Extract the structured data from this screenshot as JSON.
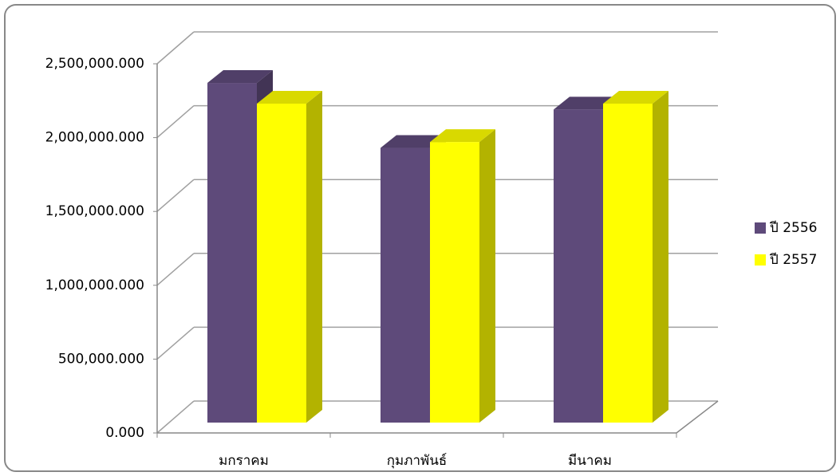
{
  "chart_data": {
    "type": "bar3d",
    "categories": [
      "มกราคม",
      "กุมภาพันธ์",
      "มีนาคม"
    ],
    "series": [
      {
        "name": "ปี 2556",
        "color": "#5e4a7a",
        "values": [
          2300000,
          1860000,
          2120000
        ]
      },
      {
        "name": "ปี 2557",
        "color": "#ffff00",
        "values": [
          2160000,
          1900000,
          2160000
        ]
      }
    ],
    "ylim": [
      0,
      2500000
    ],
    "yticks": [
      {
        "value": 0,
        "label": "0.000"
      },
      {
        "value": 500000,
        "label": "500,000.000"
      },
      {
        "value": 1000000,
        "label": "1,000,000.000"
      },
      {
        "value": 1500000,
        "label": "1,500,000.000"
      },
      {
        "value": 2000000,
        "label": "2,000,000.000"
      },
      {
        "value": 2500000,
        "label": "2,500,000.000"
      }
    ],
    "grid": true,
    "legend": "right"
  }
}
